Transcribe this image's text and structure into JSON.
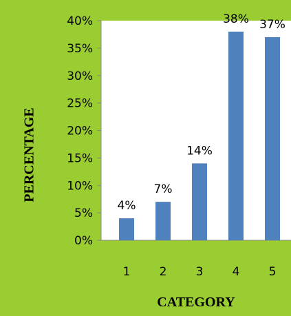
{
  "chart_data": {
    "type": "bar",
    "title": "",
    "xlabel": "CATEGORY",
    "ylabel": "PERCENTAGE",
    "categories": [
      "1",
      "2",
      "3",
      "4",
      "5"
    ],
    "values": [
      4,
      7,
      14,
      38,
      37
    ],
    "data_labels": [
      "4%",
      "7%",
      "14%",
      "38%",
      "37%"
    ],
    "y_ticks": [
      "0%",
      "5%",
      "10%",
      "15%",
      "20%",
      "25%",
      "30%",
      "35%",
      "40%"
    ],
    "ylim": [
      0,
      40
    ],
    "grid": false,
    "bar_color": "#4f81bd",
    "plot_background": "#ffffff",
    "page_background": "#9acd32"
  }
}
